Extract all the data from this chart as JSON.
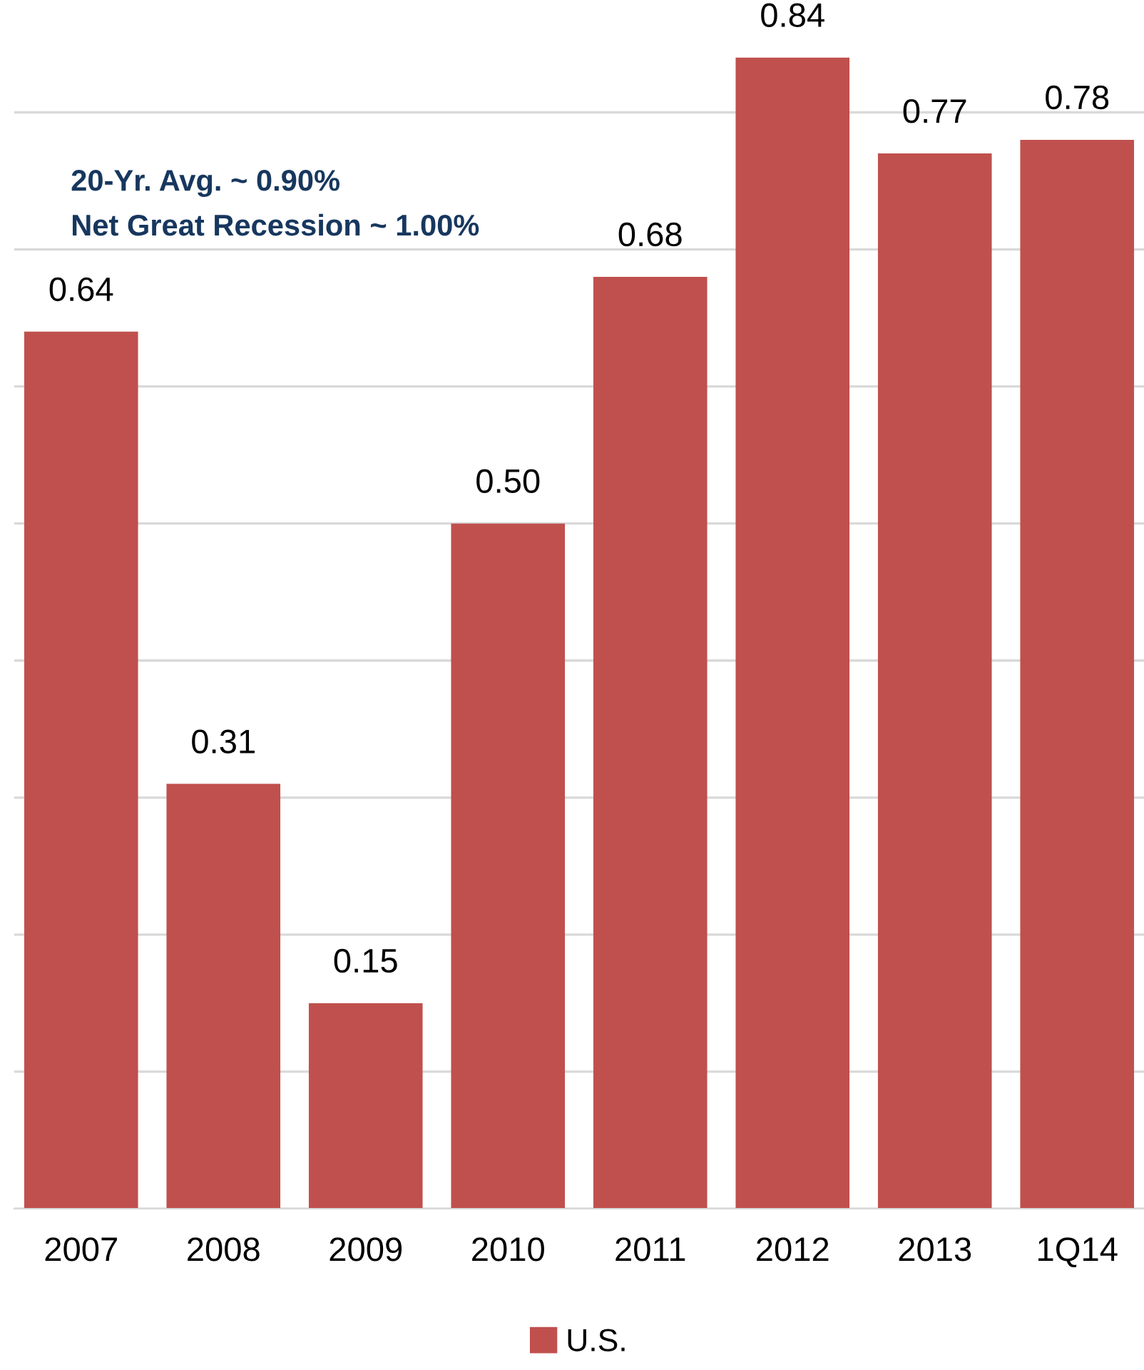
{
  "chart_data": {
    "type": "bar",
    "categories": [
      "2007",
      "2008",
      "2009",
      "2010",
      "2011",
      "2012",
      "2013",
      "1Q14"
    ],
    "series": [
      {
        "name": "U.S.",
        "color": "#c0504d",
        "values": [
          0.64,
          0.31,
          0.15,
          0.5,
          0.68,
          0.84,
          0.77,
          0.78
        ],
        "value_labels": [
          "0.64",
          "0.31",
          "0.15",
          "0.50",
          "0.68",
          "0.84",
          "0.77",
          "0.78"
        ]
      }
    ],
    "tick_labels": "x",
    "grid": "y",
    "legend": "bottom",
    "annotations": [
      "20-Yr. Avg. ~ 0.90%",
      "Net Great Recession ~ 1.00%"
    ]
  }
}
